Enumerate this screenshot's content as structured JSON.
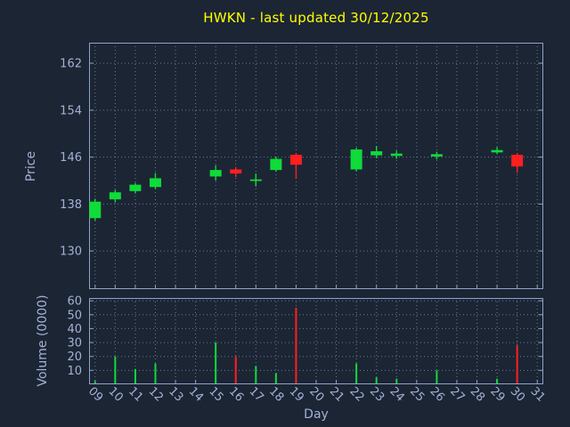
{
  "title": "HWKN - last updated 30/12/2025",
  "xlabel": "Day",
  "colors": {
    "background": "#1c2534",
    "title": "#ffff00",
    "axis_text": "#a3b1d6",
    "grid": "#7b88a8",
    "frame": "#8ea4c8",
    "up": "#0fdb3a",
    "down": "#ff1f1f"
  },
  "chart_data": [
    {
      "type": "candlestick",
      "panel": "price",
      "ylabel": "Price",
      "yticks": [
        130,
        138,
        146,
        154,
        162
      ],
      "ylim": [
        123.5,
        165.5
      ],
      "xlim": [
        8.7,
        31.3
      ],
      "grid": true,
      "xticks": [
        "09",
        "10",
        "11",
        "12",
        "13",
        "14",
        "15",
        "16",
        "17",
        "18",
        "19",
        "20",
        "21",
        "22",
        "23",
        "24",
        "25",
        "26",
        "27",
        "28",
        "29",
        "30",
        "31"
      ],
      "days": [
        9,
        10,
        11,
        12,
        15,
        16,
        17,
        18,
        19,
        22,
        23,
        24,
        26,
        29,
        30
      ],
      "open": [
        135.6,
        138.8,
        140.2,
        140.9,
        142.7,
        143.9,
        142.1,
        143.8,
        146.4,
        143.9,
        146.3,
        146.2,
        146.1,
        146.8,
        146.4
      ],
      "high": [
        138.9,
        140.4,
        141.6,
        143.3,
        144.6,
        144.3,
        143.2,
        146.1,
        146.7,
        147.6,
        147.9,
        147.1,
        146.9,
        147.7,
        146.7
      ],
      "low": [
        135.2,
        138.3,
        139.8,
        140.6,
        142.0,
        142.6,
        141.0,
        143.5,
        142.3,
        143.6,
        145.8,
        145.7,
        145.6,
        146.5,
        143.3
      ],
      "close": [
        138.4,
        140.0,
        141.3,
        142.4,
        143.8,
        143.2,
        142.2,
        145.7,
        144.7,
        147.3,
        147.0,
        146.6,
        146.5,
        147.2,
        144.4
      ]
    },
    {
      "type": "bar",
      "panel": "volume",
      "ylabel": "Volume (0000)",
      "yticks": [
        10,
        20,
        30,
        40,
        50,
        60
      ],
      "ylim": [
        0,
        62
      ],
      "grid": true,
      "days": [
        9,
        10,
        11,
        12,
        15,
        16,
        17,
        18,
        19,
        22,
        23,
        24,
        26,
        29,
        30
      ],
      "values": [
        2,
        20,
        11,
        15,
        30,
        20,
        13,
        8,
        55,
        15,
        5,
        4,
        10,
        4,
        28
      ]
    }
  ]
}
